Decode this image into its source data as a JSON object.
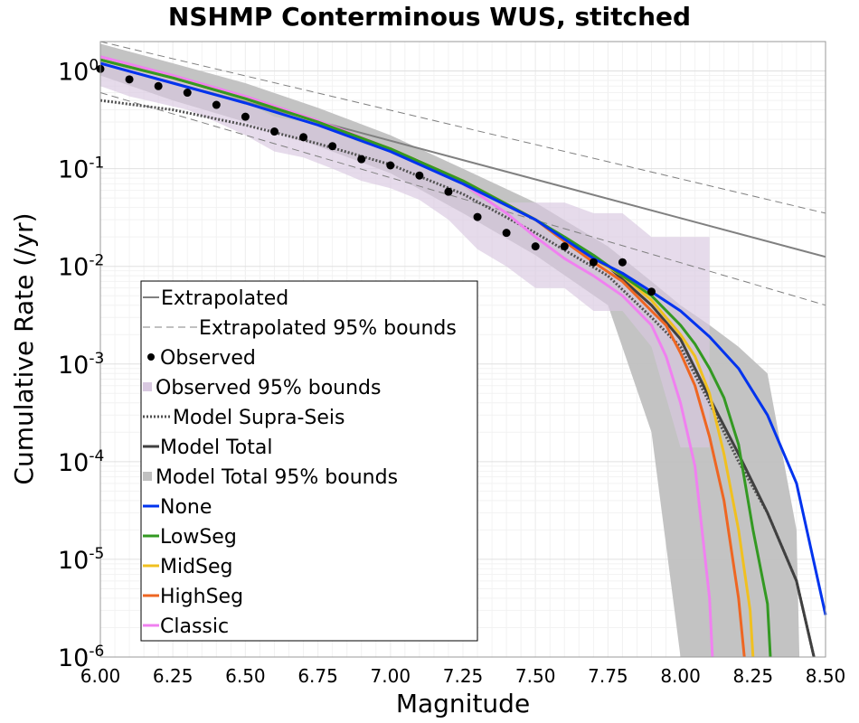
{
  "chart_data": {
    "type": "line",
    "title": "NSHMP Conterminous WUS, stitched",
    "xlabel": "Magnitude",
    "ylabel": "Cumulative Rate (/yr)",
    "xlim": [
      6.0,
      8.5
    ],
    "ylim": [
      1e-06,
      2.0
    ],
    "yscale": "log",
    "grid": true,
    "legend_position": "lower-left",
    "x_ticks": [
      "6.00",
      "6.25",
      "6.50",
      "6.75",
      "7.00",
      "7.25",
      "7.50",
      "7.75",
      "8.00",
      "8.25",
      "8.50"
    ],
    "y_ticks": [
      {
        "base": "10",
        "exp": "0",
        "value": 1
      },
      {
        "base": "10",
        "exp": "-1",
        "value": 0.1
      },
      {
        "base": "10",
        "exp": "-2",
        "value": 0.01
      },
      {
        "base": "10",
        "exp": "-3",
        "value": 0.001
      },
      {
        "base": "10",
        "exp": "-4",
        "value": 0.0001
      },
      {
        "base": "10",
        "exp": "-5",
        "value": 1e-05
      },
      {
        "base": "10",
        "exp": "-6",
        "value": 1e-06
      }
    ],
    "legend": [
      "Extrapolated",
      "Extrapolated 95% bounds",
      "Observed",
      "Observed 95% bounds",
      "Model Supra-Seis",
      "Model Total",
      "Model Total 95% bounds",
      "None",
      "LowSeg",
      "MidSeg",
      "HighSeg",
      "Classic"
    ],
    "colors": {
      "extrapolated": "#808080",
      "extrapolated_bounds": "#808080",
      "observed": "#000000",
      "observed_bounds": "#d8c8e0",
      "model_supra": "#505050",
      "model_total": "#404040",
      "model_total_bounds": "#c0c0c0",
      "none": "#0033ee",
      "lowseg": "#339922",
      "midseg": "#f0c020",
      "highseg": "#ee6622",
      "classic": "#f080f0"
    },
    "extrapolated": {
      "x": [
        6.0,
        8.5
      ],
      "y": [
        1.2,
        0.0125
      ]
    },
    "extrapolated_upper": {
      "x": [
        6.0,
        8.5
      ],
      "y": [
        3.5,
        0.035
      ]
    },
    "extrapolated_lower": {
      "x": [
        6.0,
        8.5
      ],
      "y": [
        0.6,
        0.004
      ]
    },
    "observed": {
      "x": [
        6.0,
        6.1,
        6.2,
        6.3,
        6.4,
        6.5,
        6.6,
        6.7,
        6.8,
        6.9,
        7.0,
        7.1,
        7.2,
        7.3,
        7.4,
        7.5,
        7.6,
        7.7,
        7.8,
        7.9
      ],
      "y": [
        1.05,
        0.82,
        0.7,
        0.6,
        0.45,
        0.34,
        0.24,
        0.21,
        0.17,
        0.125,
        0.108,
        0.085,
        0.058,
        0.032,
        0.022,
        0.016,
        0.016,
        0.011,
        0.011,
        0.0055
      ]
    },
    "observed_bounds": {
      "x": [
        6.0,
        6.1,
        6.2,
        6.3,
        6.4,
        6.5,
        6.6,
        6.7,
        6.8,
        6.9,
        7.0,
        7.1,
        7.2,
        7.3,
        7.4,
        7.5,
        7.6,
        7.7,
        7.8,
        7.9,
        8.0,
        8.1
      ],
      "upper": [
        1.4,
        1.1,
        0.95,
        0.82,
        0.62,
        0.48,
        0.34,
        0.3,
        0.25,
        0.18,
        0.155,
        0.125,
        0.09,
        0.05,
        0.045,
        0.045,
        0.045,
        0.035,
        0.035,
        0.02,
        0.02,
        0.02
      ],
      "lower": [
        0.7,
        0.55,
        0.47,
        0.4,
        0.3,
        0.22,
        0.15,
        0.13,
        0.1,
        0.075,
        0.063,
        0.048,
        0.03,
        0.015,
        0.01,
        0.006,
        0.006,
        0.0035,
        0.0035,
        0.0015,
        0.00014,
        0.00014
      ]
    },
    "model_total_bounds": {
      "x": [
        6.0,
        6.25,
        6.5,
        6.75,
        7.0,
        7.25,
        7.5,
        7.75,
        7.9,
        8.0,
        8.1,
        8.2,
        8.3,
        8.4,
        8.41
      ],
      "upper": [
        1.9,
        1.2,
        0.75,
        0.42,
        0.22,
        0.1,
        0.045,
        0.016,
        0.007,
        0.004,
        0.0025,
        0.0015,
        0.0008,
        2e-05,
        1e-06
      ],
      "lower": [
        0.9,
        0.5,
        0.3,
        0.17,
        0.09,
        0.035,
        0.013,
        0.004,
        0.0002,
        1e-06,
        1e-06,
        1e-06,
        1e-06,
        1e-06,
        1e-06
      ]
    },
    "series": [
      {
        "name": "Model Supra-Seis",
        "style": "dotted",
        "x": [
          6.0,
          6.25,
          6.5,
          6.75,
          7.0,
          7.25,
          7.5,
          7.75,
          7.9,
          8.0,
          8.1,
          8.2,
          8.3,
          8.4,
          8.46
        ],
        "y": [
          0.5,
          0.4,
          0.28,
          0.18,
          0.11,
          0.055,
          0.022,
          0.008,
          0.003,
          0.0015,
          0.0004,
          0.0001,
          3e-05,
          6e-06,
          1e-06
        ]
      },
      {
        "name": "Model Total",
        "style": "solid",
        "x": [
          6.0,
          6.25,
          6.5,
          6.75,
          7.0,
          7.25,
          7.5,
          7.75,
          7.9,
          8.0,
          8.1,
          8.2,
          8.3,
          8.4,
          8.46
        ],
        "y": [
          1.3,
          0.85,
          0.52,
          0.3,
          0.16,
          0.075,
          0.03,
          0.01,
          0.004,
          0.0018,
          0.00045,
          0.00012,
          3e-05,
          6e-06,
          1e-06
        ]
      },
      {
        "name": "None",
        "style": "solid",
        "x": [
          6.0,
          6.25,
          6.5,
          6.75,
          7.0,
          7.25,
          7.5,
          7.6,
          7.7,
          7.8,
          7.9,
          8.0,
          8.1,
          8.2,
          8.3,
          8.4,
          8.5
        ],
        "y": [
          1.2,
          0.75,
          0.47,
          0.28,
          0.15,
          0.07,
          0.03,
          0.019,
          0.012,
          0.0085,
          0.0055,
          0.0035,
          0.0019,
          0.0009,
          0.0003,
          6e-05,
          2.7e-06
        ]
      },
      {
        "name": "LowSeg",
        "style": "solid",
        "x": [
          6.0,
          6.25,
          6.5,
          6.75,
          7.0,
          7.25,
          7.5,
          7.6,
          7.7,
          7.8,
          7.9,
          8.0,
          8.05,
          8.1,
          8.15,
          8.2,
          8.25,
          8.3,
          8.31
        ],
        "y": [
          1.3,
          0.85,
          0.52,
          0.3,
          0.16,
          0.075,
          0.03,
          0.02,
          0.013,
          0.008,
          0.005,
          0.0025,
          0.0016,
          0.0009,
          0.00045,
          0.00015,
          2e-05,
          3.5e-06,
          1e-06
        ]
      },
      {
        "name": "MidSeg",
        "style": "solid",
        "x": [
          6.0,
          6.25,
          6.5,
          6.75,
          7.0,
          7.25,
          7.5,
          7.6,
          7.7,
          7.8,
          7.9,
          8.0,
          8.05,
          8.1,
          8.15,
          8.2,
          8.24,
          8.25
        ],
        "y": [
          1.3,
          0.85,
          0.52,
          0.3,
          0.16,
          0.075,
          0.03,
          0.019,
          0.012,
          0.008,
          0.0045,
          0.002,
          0.0012,
          0.0005,
          0.00012,
          2e-05,
          3e-06,
          1e-06
        ]
      },
      {
        "name": "HighSeg",
        "style": "solid",
        "x": [
          6.0,
          6.25,
          6.5,
          6.75,
          7.0,
          7.25,
          7.5,
          7.6,
          7.7,
          7.8,
          7.9,
          7.95,
          8.0,
          8.05,
          8.1,
          8.15,
          8.2,
          8.22
        ],
        "y": [
          1.3,
          0.85,
          0.52,
          0.3,
          0.16,
          0.075,
          0.03,
          0.018,
          0.011,
          0.007,
          0.0035,
          0.0025,
          0.0013,
          0.0006,
          0.00018,
          4e-05,
          4e-06,
          1e-06
        ]
      },
      {
        "name": "Classic",
        "style": "solid",
        "x": [
          6.0,
          6.25,
          6.5,
          6.75,
          7.0,
          7.25,
          7.4,
          7.5,
          7.6,
          7.7,
          7.8,
          7.9,
          7.95,
          8.0,
          8.05,
          8.1,
          8.11
        ],
        "y": [
          1.4,
          0.9,
          0.55,
          0.31,
          0.16,
          0.07,
          0.035,
          0.02,
          0.012,
          0.008,
          0.005,
          0.0025,
          0.0012,
          0.0004,
          9e-05,
          4e-06,
          1e-06
        ]
      }
    ]
  }
}
